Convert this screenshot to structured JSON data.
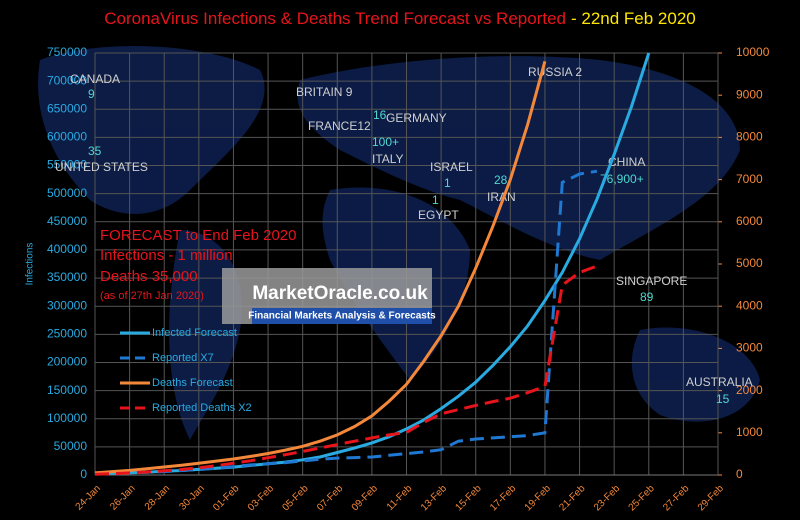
{
  "chart_data": {
    "type": "line",
    "title": "CoronaVirus Infections & Deaths Trend Forecast vs Reported",
    "title_date": "- 22nd Feb 2020",
    "ylabel": "Infections",
    "categories": [
      "24-Jan",
      null,
      "26-Jan",
      null,
      "28-Jan",
      null,
      "30-Jan",
      null,
      "01-Feb",
      null,
      "03-Feb",
      null,
      "05-Feb",
      null,
      "07-Feb",
      null,
      "09-Feb",
      null,
      "11-Feb",
      null,
      "13-Feb",
      null,
      "15-Feb",
      null,
      "17-Feb",
      null,
      "19-Feb",
      null,
      "21-Feb",
      null,
      "23-Feb",
      null,
      "25-Feb",
      null,
      "27-Feb",
      null,
      "29-Feb"
    ],
    "ylim": [
      0,
      750000
    ],
    "yticks": [
      0,
      50000,
      100000,
      150000,
      200000,
      250000,
      300000,
      350000,
      400000,
      450000,
      500000,
      550000,
      600000,
      650000,
      700000,
      750000
    ],
    "y2lim": [
      0,
      10000
    ],
    "y2ticks": [
      0,
      1000,
      2000,
      3000,
      4000,
      5000,
      6000,
      7000,
      8000,
      9000,
      10000
    ],
    "grid": true,
    "series": [
      {
        "name": "Infected Forecast",
        "color": "#29abe2",
        "dashed": false,
        "values": [
          2000,
          3000,
          4000,
          5000,
          6500,
          8000,
          10000,
          12000,
          14000,
          17000,
          20000,
          23000,
          27000,
          32000,
          40000,
          48000,
          57000,
          68000,
          82000,
          98000,
          118000,
          140000,
          165000,
          195000,
          228000,
          265000,
          310000,
          360000,
          420000,
          490000,
          570000,
          655000,
          750000,
          null,
          null,
          null,
          null
        ]
      },
      {
        "name": "Reported X7",
        "color": "#1f78d1",
        "dashed": true,
        "values": [
          2000,
          3000,
          4000,
          5000,
          6000,
          8000,
          10000,
          12000,
          15000,
          18000,
          20000,
          22000,
          25000,
          28000,
          30000,
          31000,
          32000,
          35000,
          38000,
          41000,
          45000,
          60000,
          64000,
          66000,
          68000,
          70000,
          75000,
          520000,
          535000,
          540000,
          null,
          null,
          null,
          null,
          null,
          null,
          null
        ]
      },
      {
        "name": "Deaths Forecast",
        "color": "#f4883a",
        "dashed": false,
        "axis": "y2",
        "values": [
          50,
          80,
          110,
          150,
          190,
          230,
          280,
          330,
          380,
          440,
          510,
          590,
          680,
          800,
          950,
          1150,
          1400,
          1750,
          2150,
          2700,
          3300,
          4000,
          4900,
          5900,
          7000,
          8300,
          9800,
          null,
          null,
          null,
          null,
          null,
          null,
          null,
          null,
          null,
          null
        ]
      },
      {
        "name": "Reported Deaths X2",
        "color": "#e8141b",
        "dashed": true,
        "axis": "y2",
        "values": [
          20,
          30,
          50,
          70,
          100,
          130,
          170,
          220,
          280,
          340,
          410,
          480,
          560,
          640,
          720,
          800,
          880,
          950,
          1010,
          1250,
          1450,
          1550,
          1650,
          1740,
          1820,
          1950,
          2100,
          4500,
          4800,
          4950,
          null,
          null,
          null,
          null,
          null,
          null,
          null
        ]
      }
    ],
    "forecast_box": [
      "FORECAST to End Feb 2020",
      "Infections - 1 million",
      "Deaths 35,000",
      "(as of 27th Jan 2020)"
    ],
    "logo": {
      "name": "MarketOracle.co.uk",
      "tagline": "Financial Markets Analysis & Forecasts"
    },
    "map_labels": [
      "CANADA",
      "9",
      "35",
      "UNITED STATES",
      "BRITAIN 9",
      "FRANCE12",
      "16",
      "GERMANY",
      "100+",
      "ITALY",
      "ISRAEL",
      "1",
      "1",
      "EGYPT",
      "28",
      "IRAN",
      "RUSSIA 2",
      "CHINA",
      "76,900+",
      "SINGAPORE",
      "89",
      "AUSTRALIA",
      "15"
    ]
  }
}
